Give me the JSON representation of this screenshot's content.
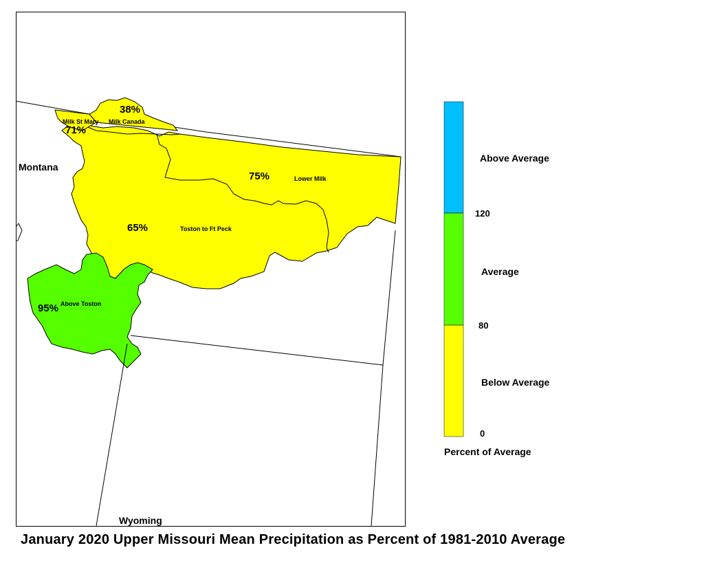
{
  "title": "January 2020 Upper Missouri Mean Precipitation as Percent of 1981-2010 Average",
  "states": {
    "montana": "Montana",
    "wyoming": "Wyoming"
  },
  "basins": [
    {
      "name": "Milk St Mary",
      "percent": "71%",
      "category": "Below Average"
    },
    {
      "name": "Milk Canada",
      "percent": "38%",
      "category": "Below Average"
    },
    {
      "name": "Lower Milk",
      "percent": "75%",
      "category": "Below Average"
    },
    {
      "name": "Toston to Ft Peck",
      "percent": "65%",
      "category": "Below Average"
    },
    {
      "name": "Above Toston",
      "percent": "95%",
      "category": "Average"
    }
  ],
  "legend": {
    "title": "Percent of Average",
    "categories": [
      {
        "label": "Above Average",
        "color": "#00bfff"
      },
      {
        "label": "Average",
        "color": "#55ff00"
      },
      {
        "label": "Below Average",
        "color": "#ffff00"
      }
    ],
    "ticks": [
      "120",
      "80",
      "0"
    ]
  }
}
